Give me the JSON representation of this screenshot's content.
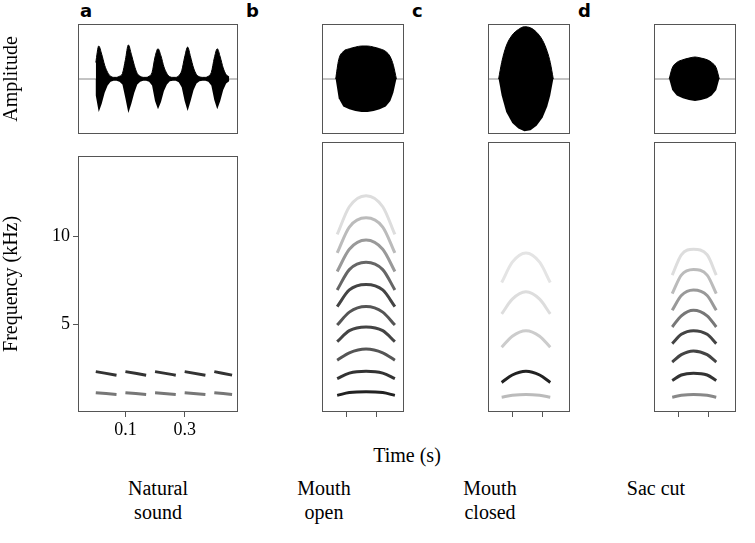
{
  "chart_data": {
    "type": "spectrogram_panels",
    "x_label": "Time (s)",
    "amplitude_label": "Amplitude",
    "y_label": "Frequency (kHz)",
    "xlim": [
      -0.06,
      0.48
    ],
    "xticks": [
      0.1,
      0.3
    ],
    "ylim": [
      0,
      14.6
    ],
    "yticks": [
      5,
      10
    ],
    "amplitude_lim": [
      -1,
      1
    ],
    "grid": false,
    "color": "#000000",
    "panels": [
      {
        "letter": "a",
        "caption": "Natural sound",
        "amplitude": {
          "x": [
            0,
            0.01,
            0.02,
            0.03,
            0.04,
            0.05,
            0.06,
            0.07,
            0.08,
            0.09,
            0.1,
            0.11,
            0.12,
            0.13,
            0.14,
            0.15,
            0.16,
            0.17,
            0.18,
            0.19,
            0.2,
            0.21,
            0.22,
            0.23,
            0.24,
            0.25,
            0.26,
            0.27,
            0.28,
            0.29,
            0.3,
            0.31,
            0.32,
            0.33,
            0.34,
            0.35,
            0.36,
            0.37,
            0.38,
            0.39,
            0.4,
            0.41,
            0.42,
            0.43,
            0.44,
            0.45
          ],
          "values": [
            0.3,
            0.6,
            0.45,
            0.25,
            0.12,
            0.05,
            0.03,
            0.03,
            0.05,
            0.1,
            0.35,
            0.62,
            0.45,
            0.25,
            0.1,
            0.05,
            0.03,
            0.03,
            0.05,
            0.12,
            0.4,
            0.55,
            0.42,
            0.22,
            0.1,
            0.04,
            0.03,
            0.03,
            0.06,
            0.15,
            0.4,
            0.58,
            0.4,
            0.2,
            0.08,
            0.04,
            0.03,
            0.03,
            0.05,
            0.12,
            0.38,
            0.55,
            0.4,
            0.2,
            0.08,
            0.04
          ]
        },
        "series": [
          {
            "color": "#777777",
            "x": [
              0,
              0.07,
              0.08,
              0.1,
              0.17,
              0.18,
              0.2,
              0.27,
              0.28,
              0.3,
              0.37,
              0.38,
              0.4,
              0.46
            ],
            "values": [
              1.1,
              1.0,
              null,
              1.1,
              1.0,
              null,
              1.1,
              1.0,
              null,
              1.1,
              1.0,
              null,
              1.1,
              1.0
            ]
          },
          {
            "color": "#333333",
            "x": [
              0,
              0.07,
              0.08,
              0.1,
              0.17,
              0.18,
              0.2,
              0.27,
              0.28,
              0.3,
              0.37,
              0.38,
              0.4,
              0.46
            ],
            "values": [
              2.3,
              2.1,
              null,
              2.3,
              2.1,
              null,
              2.3,
              2.1,
              null,
              2.3,
              2.1,
              null,
              2.3,
              2.1
            ]
          }
        ]
      },
      {
        "letter": "b",
        "caption": "Mouth open",
        "tick_labels": false,
        "amplitude": {
          "x": [
            0.03,
            0.05,
            0.08,
            0.12,
            0.16,
            0.2,
            0.24,
            0.28,
            0.32,
            0.36,
            0.39,
            0.41,
            0.43
          ],
          "values": [
            0,
            0.35,
            0.5,
            0.55,
            0.58,
            0.6,
            0.6,
            0.58,
            0.55,
            0.5,
            0.4,
            0.25,
            0
          ]
        },
        "series": [
          {
            "color": "#222222",
            "x": [
              0.04,
              0.12,
              0.23,
              0.34,
              0.42
            ],
            "values": [
              0.9,
              1.05,
              1.1,
              1.05,
              0.9
            ]
          },
          {
            "color": "#333333",
            "x": [
              0.04,
              0.12,
              0.23,
              0.34,
              0.42
            ],
            "values": [
              1.8,
              2.1,
              2.2,
              2.1,
              1.8
            ]
          },
          {
            "color": "#555555",
            "x": [
              0.04,
              0.12,
              0.23,
              0.34,
              0.42
            ],
            "values": [
              2.8,
              3.2,
              3.4,
              3.2,
              2.8
            ]
          },
          {
            "color": "#444444",
            "x": [
              0.04,
              0.12,
              0.23,
              0.34,
              0.42
            ],
            "values": [
              3.8,
              4.4,
              4.6,
              4.4,
              3.8
            ]
          },
          {
            "color": "#555555",
            "x": [
              0.04,
              0.12,
              0.23,
              0.34,
              0.42
            ],
            "values": [
              4.7,
              5.4,
              5.7,
              5.4,
              4.7
            ]
          },
          {
            "color": "#444444",
            "x": [
              0.04,
              0.12,
              0.23,
              0.34,
              0.42
            ],
            "values": [
              5.7,
              6.6,
              6.9,
              6.6,
              5.7
            ]
          },
          {
            "color": "#666666",
            "x": [
              0.04,
              0.12,
              0.23,
              0.34,
              0.42
            ],
            "values": [
              6.6,
              7.7,
              8.1,
              7.7,
              6.6
            ]
          },
          {
            "color": "#999999",
            "x": [
              0.04,
              0.12,
              0.23,
              0.34,
              0.42
            ],
            "values": [
              7.6,
              8.8,
              9.3,
              8.8,
              7.6
            ]
          },
          {
            "color": "#bbbbbb",
            "x": [
              0.04,
              0.12,
              0.23,
              0.34,
              0.42
            ],
            "values": [
              8.6,
              10.0,
              10.5,
              10.0,
              8.6
            ]
          },
          {
            "color": "#dddddd",
            "x": [
              0.04,
              0.12,
              0.23,
              0.34,
              0.42
            ],
            "values": [
              9.6,
              11.1,
              11.7,
              11.1,
              9.6
            ]
          }
        ]
      },
      {
        "letter": "c",
        "caption": "Mouth closed",
        "tick_labels": false,
        "amplitude": {
          "x": [
            0.01,
            0.03,
            0.06,
            0.1,
            0.14,
            0.18,
            0.22,
            0.26,
            0.3,
            0.33,
            0.35,
            0.37
          ],
          "values": [
            0,
            0.3,
            0.6,
            0.8,
            0.9,
            0.95,
            0.93,
            0.85,
            0.7,
            0.5,
            0.3,
            0
          ]
        },
        "series": [
          {
            "color": "#bbbbbb",
            "x": [
              0.03,
              0.1,
              0.19,
              0.28,
              0.35
            ],
            "values": [
              0.8,
              0.9,
              0.95,
              0.9,
              0.8
            ]
          },
          {
            "color": "#222222",
            "x": [
              0.03,
              0.1,
              0.19,
              0.28,
              0.35
            ],
            "values": [
              1.6,
              2.0,
              2.2,
              2.0,
              1.6
            ]
          },
          {
            "color": "#cccccc",
            "x": [
              0.03,
              0.1,
              0.19,
              0.28,
              0.35
            ],
            "values": [
              3.5,
              4.1,
              4.4,
              4.1,
              3.5
            ]
          },
          {
            "color": "#dddddd",
            "x": [
              0.03,
              0.1,
              0.19,
              0.28,
              0.35
            ],
            "values": [
              5.3,
              6.1,
              6.5,
              6.1,
              5.3
            ]
          },
          {
            "color": "#e4e4e4",
            "x": [
              0.03,
              0.1,
              0.19,
              0.28,
              0.35
            ],
            "values": [
              7.0,
              8.1,
              8.6,
              8.1,
              7.0
            ]
          }
        ]
      },
      {
        "letter": "d",
        "caption": "Sac cut",
        "tick_labels": false,
        "amplitude": {
          "x": [
            0.04,
            0.06,
            0.09,
            0.13,
            0.17,
            0.21,
            0.25,
            0.29,
            0.32,
            0.35,
            0.37
          ],
          "values": [
            0,
            0.2,
            0.3,
            0.35,
            0.38,
            0.4,
            0.38,
            0.35,
            0.3,
            0.2,
            0
          ]
        },
        "series": [
          {
            "color": "#888888",
            "x": [
              0.06,
              0.12,
              0.2,
              0.29,
              0.35
            ],
            "values": [
              0.8,
              0.9,
              0.95,
              0.9,
              0.8
            ]
          },
          {
            "color": "#333333",
            "x": [
              0.06,
              0.12,
              0.2,
              0.29,
              0.35
            ],
            "values": [
              1.7,
              2.0,
              2.1,
              2.0,
              1.7
            ]
          },
          {
            "color": "#444444",
            "x": [
              0.06,
              0.12,
              0.2,
              0.29,
              0.35
            ],
            "values": [
              2.7,
              3.1,
              3.3,
              3.1,
              2.7
            ]
          },
          {
            "color": "#444444",
            "x": [
              0.06,
              0.12,
              0.2,
              0.29,
              0.35
            ],
            "values": [
              3.7,
              4.2,
              4.4,
              4.2,
              3.7
            ]
          },
          {
            "color": "#777777",
            "x": [
              0.06,
              0.12,
              0.2,
              0.29,
              0.35
            ],
            "values": [
              4.6,
              5.2,
              5.5,
              5.2,
              4.6
            ]
          },
          {
            "color": "#999999",
            "x": [
              0.06,
              0.12,
              0.2,
              0.29,
              0.35
            ],
            "values": [
              5.5,
              6.3,
              6.6,
              6.3,
              5.5
            ]
          },
          {
            "color": "#bbbbbb",
            "x": [
              0.06,
              0.12,
              0.2,
              0.29,
              0.35
            ],
            "values": [
              6.4,
              7.4,
              7.7,
              7.4,
              6.4
            ]
          },
          {
            "color": "#dddddd",
            "x": [
              0.06,
              0.12,
              0.2,
              0.29,
              0.35
            ],
            "values": [
              7.4,
              8.5,
              8.8,
              8.5,
              7.4
            ]
          }
        ]
      }
    ]
  }
}
